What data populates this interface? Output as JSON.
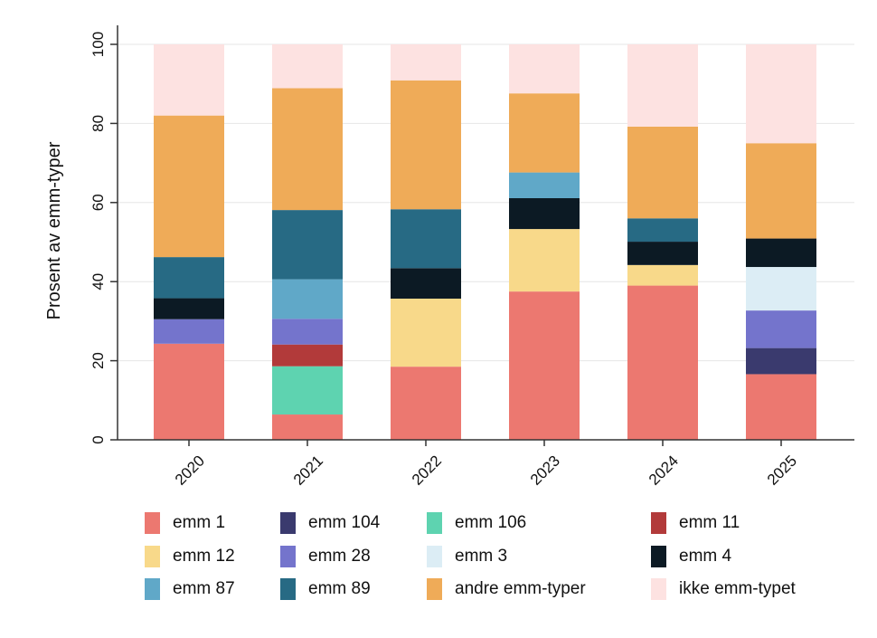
{
  "chart_data": {
    "type": "bar",
    "stacked": true,
    "categories": [
      "2020",
      "2021",
      "2022",
      "2023",
      "2024",
      "2025"
    ],
    "ylabel": "Prosent av emm-typer",
    "ylim": [
      0,
      100
    ],
    "yticks": [
      0,
      20,
      40,
      60,
      80,
      100
    ],
    "grid": true,
    "legend_position": "bottom",
    "series": [
      {
        "name": "emm 1",
        "color": "#ec7870",
        "values": [
          24.3,
          6.4,
          18.5,
          37.5,
          39.0,
          16.6
        ]
      },
      {
        "name": "emm 104",
        "color": "#3a3a6e",
        "values": [
          0,
          0,
          0,
          0,
          0,
          6.6
        ]
      },
      {
        "name": "emm 106",
        "color": "#5ed3b0",
        "values": [
          0,
          12.2,
          0,
          0,
          0,
          0
        ]
      },
      {
        "name": "emm 11",
        "color": "#b23a3a",
        "values": [
          0,
          5.5,
          0,
          0,
          0,
          0
        ]
      },
      {
        "name": "emm 12",
        "color": "#f8d98a",
        "values": [
          0,
          0,
          17.2,
          15.8,
          5.2,
          0
        ]
      },
      {
        "name": "emm 28",
        "color": "#7474cc",
        "values": [
          6.2,
          6.5,
          0,
          0,
          0,
          9.5
        ]
      },
      {
        "name": "emm 3",
        "color": "#dcedf5",
        "values": [
          0,
          0,
          0,
          0,
          0,
          11.0
        ]
      },
      {
        "name": "emm 4",
        "color": "#0c1a24",
        "values": [
          5.3,
          0,
          7.7,
          7.8,
          5.9,
          7.2
        ]
      },
      {
        "name": "emm 87",
        "color": "#60a8c8",
        "values": [
          0,
          10.0,
          0,
          6.5,
          0,
          0
        ]
      },
      {
        "name": "emm 89",
        "color": "#276a84",
        "values": [
          10.4,
          17.5,
          14.9,
          0,
          5.9,
          0
        ]
      },
      {
        "name": "andre emm-typer",
        "color": "#efab58",
        "values": [
          35.8,
          30.8,
          32.6,
          20.0,
          23.2,
          24.1
        ]
      },
      {
        "name": "ikke emm-typet",
        "color": "#fde2e1",
        "values": [
          18.0,
          11.1,
          9.1,
          12.4,
          20.8,
          25.0
        ]
      }
    ]
  },
  "legend_order": [
    "emm 1",
    "emm 104",
    "emm 106",
    "emm 11",
    "emm 12",
    "emm 28",
    "emm 3",
    "emm 4",
    "emm 87",
    "emm 89",
    "andre emm-typer",
    "ikke emm-typet"
  ]
}
